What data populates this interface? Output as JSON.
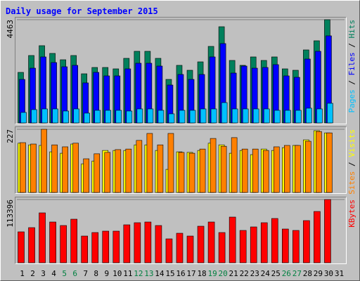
{
  "title": "Daily usage for September 2015",
  "chart_data": [
    {
      "type": "bar",
      "ylim": [
        0,
        4463
      ],
      "yticks": [
        4463
      ],
      "grid": true,
      "legend_separator": " / ",
      "series": [
        {
          "name": "Pages",
          "color": "#00c0ff",
          "values": [
            455,
            577,
            607,
            607,
            516,
            607,
            425,
            546,
            546,
            546,
            516,
            607,
            607,
            546,
            395,
            546,
            546,
            607,
            607,
            880,
            607,
            607,
            607,
            607,
            546,
            546,
            546,
            638,
            607,
            850,
            null
          ]
        },
        {
          "name": "Files",
          "color": "#0000ff",
          "values": [
            1882,
            2368,
            2854,
            2611,
            2429,
            2490,
            1731,
            2186,
            2034,
            2034,
            2338,
            2581,
            2581,
            2459,
            1639,
            2095,
            1882,
            2095,
            2854,
            3431,
            2156,
            2459,
            2368,
            2398,
            2520,
            2034,
            1973,
            2763,
            3097,
            3765,
            null
          ]
        },
        {
          "name": "Hits",
          "color": "#00805c",
          "values": [
            2186,
            2915,
            3340,
            3006,
            2732,
            2915,
            2125,
            2398,
            2398,
            2338,
            2793,
            3097,
            3097,
            2793,
            1882,
            2490,
            2277,
            2641,
            3309,
            4159,
            2702,
            2490,
            2854,
            2702,
            2854,
            2338,
            2277,
            3157,
            3552,
            4463,
            null
          ]
        }
      ]
    },
    {
      "type": "bar",
      "ylim": [
        0,
        227
      ],
      "yticks": [
        227
      ],
      "grid": true,
      "legend_separator": " / ",
      "series": [
        {
          "name": "Sites",
          "color": "#ff8000",
          "values": [
            179,
            174,
            227,
            171,
            164,
            177,
            121,
            139,
            144,
            154,
            156,
            187,
            212,
            171,
            212,
            144,
            141,
            156,
            194,
            166,
            197,
            156,
            156,
            151,
            164,
            169,
            169,
            184,
            219,
            214,
            null
          ]
        },
        {
          "name": "Visits",
          "color": "#ffff00",
          "values": [
            177,
            171,
            169,
            146,
            141,
            174,
            103,
            113,
            151,
            151,
            151,
            171,
            171,
            151,
            83,
            146,
            144,
            151,
            177,
            171,
            141,
            151,
            136,
            156,
            151,
            161,
            169,
            189,
            222,
            214,
            null
          ]
        }
      ]
    },
    {
      "type": "bar",
      "ylim": [
        0,
        113396
      ],
      "yticks": [
        113396
      ],
      "grid": true,
      "categories": [
        "1",
        "2",
        "3",
        "4",
        "5",
        "6",
        "7",
        "8",
        "9",
        "10",
        "11",
        "12",
        "13",
        "14",
        "15",
        "16",
        "17",
        "18",
        "19",
        "20",
        "21",
        "22",
        "23",
        "24",
        "25",
        "26",
        "27",
        "28",
        "29",
        "30",
        "31"
      ],
      "category_colors": [
        "#000000",
        "#000000",
        "#000000",
        "#000000",
        "#008040",
        "#008040",
        "#000000",
        "#000000",
        "#000000",
        "#000000",
        "#000000",
        "#008040",
        "#008040",
        "#000000",
        "#000000",
        "#000000",
        "#000000",
        "#000000",
        "#008040",
        "#008040",
        "#000000",
        "#000000",
        "#000000",
        "#000000",
        "#000000",
        "#008040",
        "#008040",
        "#000000",
        "#000000",
        "#000000",
        "#000000"
      ],
      "series": [
        {
          "name": "KBytes",
          "color": "#ff0000",
          "values": [
            55440,
            63000,
            89460,
            73080,
            66780,
            78120,
            47880,
            54180,
            56700,
            56700,
            68040,
            71820,
            73080,
            66780,
            42840,
            52920,
            47880,
            65520,
            73080,
            54180,
            81900,
            57960,
            64260,
            71820,
            79380,
            60480,
            57960,
            75600,
            91980,
            113396,
            null
          ]
        }
      ]
    }
  ]
}
